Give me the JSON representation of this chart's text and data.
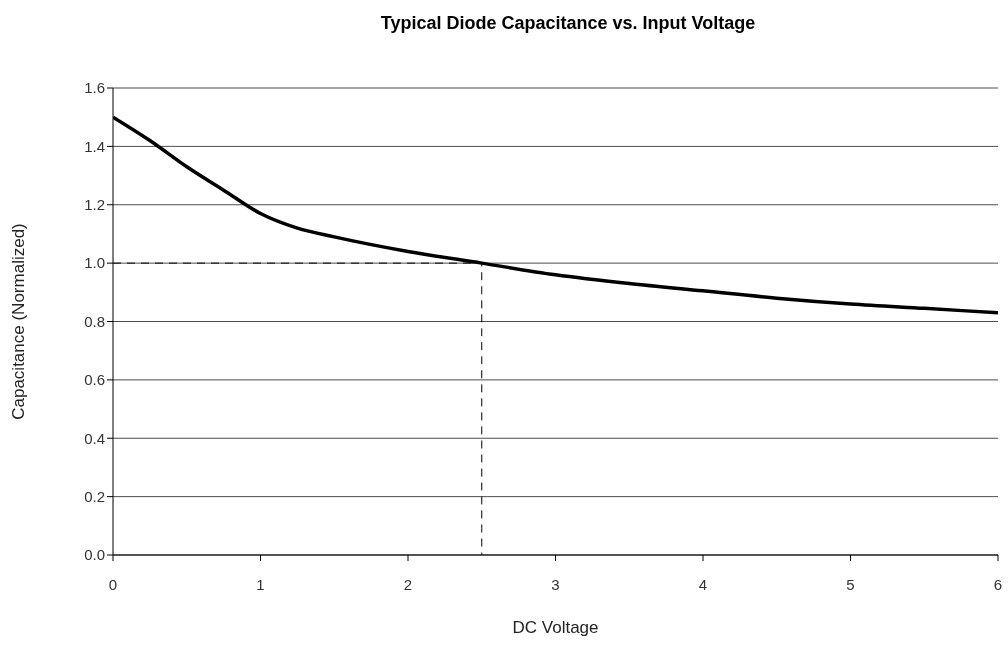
{
  "chart_data": {
    "type": "line",
    "title": "Typical Diode Capacitance vs. Input Voltage",
    "xlabel": "DC Voltage",
    "ylabel": "Capacitance (Normalized)",
    "series": [
      {
        "color": "#000000",
        "x": [
          0,
          0.25,
          0.5,
          0.75,
          1,
          1.25,
          1.5,
          2,
          2.5,
          3,
          3.5,
          4,
          4.5,
          5,
          5.5,
          6
        ],
        "values": [
          1.5,
          1.42,
          1.33,
          1.25,
          1.17,
          1.12,
          1.09,
          1.04,
          1.0,
          0.96,
          0.93,
          0.905,
          0.88,
          0.86,
          0.845,
          0.83
        ]
      },
      {
        "color": "#000000",
        "line_style": "dashed",
        "x": [
          0,
          2.5,
          2.5
        ],
        "values": [
          1.0,
          1.0,
          0.0
        ]
      }
    ],
    "xlim": [
      0,
      6
    ],
    "xticks": [
      0,
      1,
      2,
      3,
      4,
      5,
      6
    ],
    "ylim": [
      0,
      1.6
    ],
    "yticks": [
      {
        "value": 0,
        "label": "0.0"
      },
      {
        "value": 0.2,
        "label": "0.2"
      },
      {
        "value": 0.4,
        "label": "0.4"
      },
      {
        "value": 0.6,
        "label": "0.6"
      },
      {
        "value": 0.8,
        "label": "0.8"
      },
      {
        "value": 1,
        "label": "1.0"
      },
      {
        "value": 1.2,
        "label": "1.2"
      },
      {
        "value": 1.4,
        "label": "1.4"
      },
      {
        "value": 1.6,
        "label": "1.6"
      }
    ],
    "grid": "y",
    "legend": false,
    "marker": "none",
    "line_style": "solid"
  }
}
